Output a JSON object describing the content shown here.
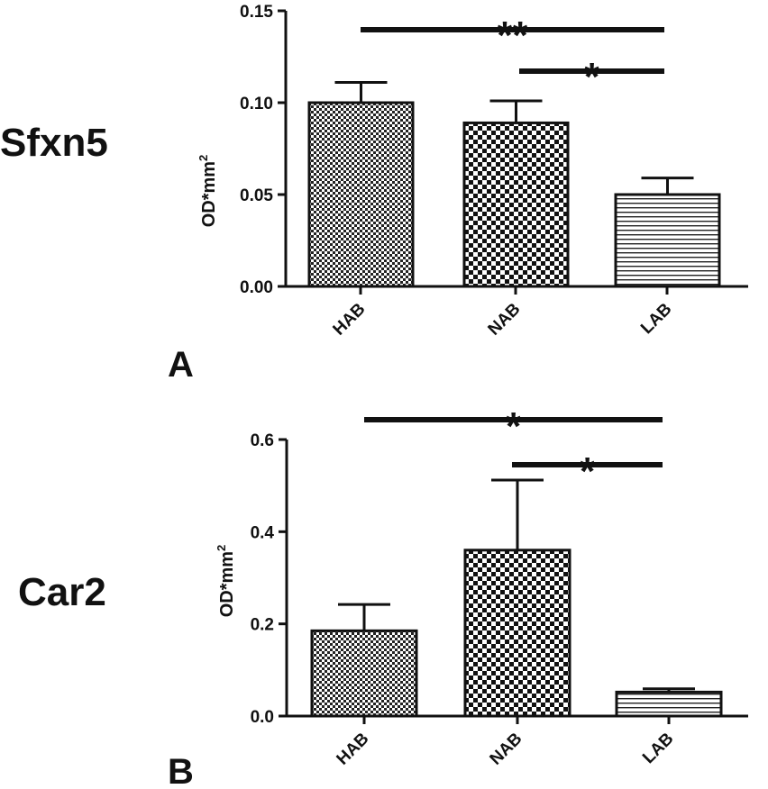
{
  "chart_data": [
    {
      "type": "bar",
      "panel": "A",
      "gene": "Sfxn5",
      "ylabel": "OD*mm",
      "ylabel_superscript": "2",
      "categories": [
        "HAB",
        "NAB",
        "LAB"
      ],
      "values": [
        0.1,
        0.089,
        0.05
      ],
      "errors": [
        0.011,
        0.012,
        0.009
      ],
      "patterns": [
        "checker-fine",
        "checker-coarse",
        "horizontal-stripes"
      ],
      "ylim": [
        0,
        0.15
      ],
      "yticks": [
        0.0,
        0.05,
        0.1,
        0.15
      ],
      "ytick_labels": [
        "0.00",
        "0.05",
        "0.10",
        "0.15"
      ],
      "grid": false,
      "significance": [
        {
          "from": "HAB",
          "to": "LAB",
          "label": "**"
        },
        {
          "from": "NAB",
          "to": "LAB",
          "label": "*"
        }
      ]
    },
    {
      "type": "bar",
      "panel": "B",
      "gene": "Car2",
      "ylabel": "OD*mm",
      "ylabel_superscript": "2",
      "categories": [
        "HAB",
        "NAB",
        "LAB"
      ],
      "values": [
        0.185,
        0.36,
        0.052
      ],
      "errors": [
        0.057,
        0.152,
        0.007
      ],
      "patterns": [
        "checker-fine",
        "checker-coarse",
        "horizontal-stripes"
      ],
      "ylim": [
        0,
        0.6
      ],
      "yticks": [
        0.0,
        0.2,
        0.4,
        0.6
      ],
      "ytick_labels": [
        "0.0",
        "0.2",
        "0.4",
        "0.6"
      ],
      "grid": false,
      "significance": [
        {
          "from": "HAB",
          "to": "LAB",
          "label": "*"
        },
        {
          "from": "NAB",
          "to": "LAB",
          "label": "*"
        }
      ]
    }
  ]
}
